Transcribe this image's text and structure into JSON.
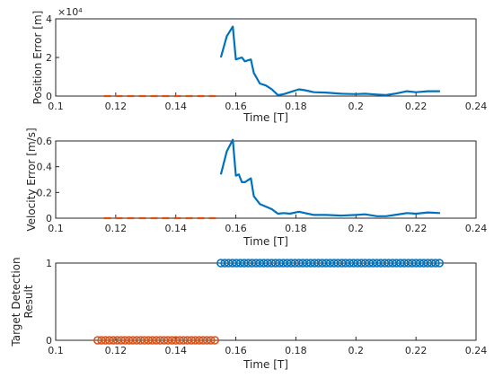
{
  "colors": {
    "blue": "#0072BD",
    "orange": "#D95319",
    "axis": "#262626"
  },
  "chart_data": [
    {
      "type": "line",
      "xlabel": "Time [T]",
      "ylabel": "Position Error [m]",
      "exponent_label": "×10⁴",
      "xlim": [
        0.1,
        0.24
      ],
      "ylim": [
        0,
        4
      ],
      "xticks": [
        "0.1",
        "0.12",
        "0.14",
        "0.16",
        "0.18",
        "0.2",
        "0.22",
        "0.24"
      ],
      "yticks": [
        "0",
        "2",
        "4"
      ],
      "series": [
        {
          "color": "blue",
          "style": "solid",
          "x": [
            0.155,
            0.157,
            0.159,
            0.16,
            0.162,
            0.163,
            0.165,
            0.166,
            0.168,
            0.17,
            0.172,
            0.174,
            0.176,
            0.178,
            0.181,
            0.183,
            0.186,
            0.19,
            0.195,
            0.2,
            0.203,
            0.207,
            0.21,
            0.213,
            0.217,
            0.22,
            0.224,
            0.228
          ],
          "y": [
            2.0,
            3.1,
            3.6,
            1.9,
            2.0,
            1.8,
            1.9,
            1.2,
            0.65,
            0.55,
            0.35,
            0.05,
            0.1,
            0.2,
            0.35,
            0.3,
            0.2,
            0.18,
            0.12,
            0.1,
            0.12,
            0.08,
            0.05,
            0.12,
            0.25,
            0.2,
            0.25,
            0.25
          ]
        },
        {
          "color": "orange",
          "style": "dashed",
          "x": [
            0.116,
            0.154
          ],
          "y": [
            0,
            0
          ]
        }
      ]
    },
    {
      "type": "line",
      "xlabel": "Time [T]",
      "ylabel": "Velocity Error [m/s]",
      "xlim": [
        0.1,
        0.24
      ],
      "ylim": [
        0,
        0.6
      ],
      "xticks": [
        "0.1",
        "0.12",
        "0.14",
        "0.16",
        "0.18",
        "0.2",
        "0.22",
        "0.24"
      ],
      "yticks": [
        "0",
        "0.2",
        "0.4",
        "0.6"
      ],
      "series": [
        {
          "color": "blue",
          "style": "solid",
          "x": [
            0.155,
            0.157,
            0.159,
            0.16,
            0.161,
            0.162,
            0.163,
            0.165,
            0.166,
            0.168,
            0.17,
            0.172,
            0.174,
            0.176,
            0.178,
            0.181,
            0.183,
            0.186,
            0.19,
            0.195,
            0.2,
            0.203,
            0.207,
            0.21,
            0.213,
            0.217,
            0.22,
            0.224,
            0.228
          ],
          "y": [
            0.34,
            0.52,
            0.61,
            0.33,
            0.34,
            0.28,
            0.28,
            0.31,
            0.17,
            0.11,
            0.09,
            0.07,
            0.035,
            0.04,
            0.035,
            0.05,
            0.04,
            0.025,
            0.025,
            0.02,
            0.025,
            0.03,
            0.015,
            0.015,
            0.025,
            0.04,
            0.035,
            0.045,
            0.04
          ]
        },
        {
          "color": "orange",
          "style": "dashed",
          "x": [
            0.116,
            0.154
          ],
          "y": [
            0,
            0
          ]
        }
      ]
    },
    {
      "type": "scatter",
      "xlabel": "Time [T]",
      "ylabel": [
        "Target Detection",
        "Result"
      ],
      "xlim": [
        0.1,
        0.24
      ],
      "ylim": [
        0,
        1
      ],
      "xticks": [
        "0.1",
        "0.12",
        "0.14",
        "0.16",
        "0.18",
        "0.2",
        "0.22",
        "0.24"
      ],
      "yticks": [
        "0",
        "1"
      ],
      "marker": "circle",
      "series": [
        {
          "color": "orange",
          "x_start": 0.114,
          "x_end": 0.154,
          "x_step": 0.0013,
          "y": 0
        },
        {
          "color": "blue",
          "x_start": 0.155,
          "x_end": 0.228,
          "x_step": 0.0013,
          "y": 1
        }
      ]
    }
  ]
}
